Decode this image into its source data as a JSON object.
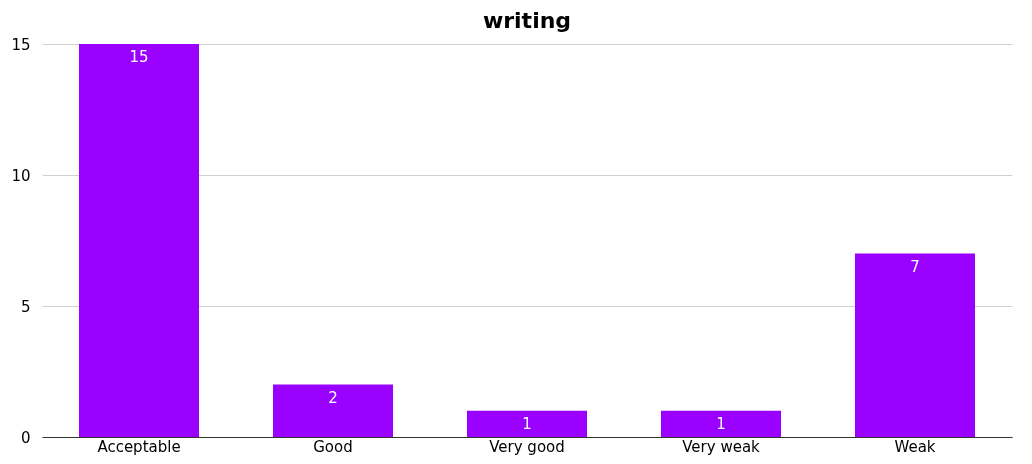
{
  "chart_data": {
    "type": "bar",
    "title": "writing",
    "categories": [
      "Acceptable",
      "Good",
      "Very good",
      "Very weak",
      "Weak"
    ],
    "values": [
      15,
      2,
      1,
      1,
      7
    ],
    "color": "#9900ff",
    "ylim": [
      0,
      15
    ],
    "yticks": [
      0,
      5,
      10,
      15
    ],
    "grid": "y",
    "data_labels": true
  }
}
